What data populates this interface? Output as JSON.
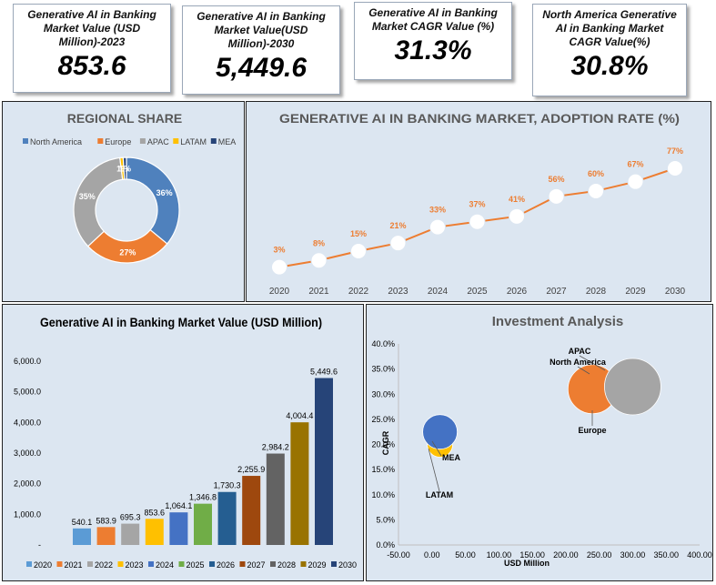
{
  "kpis": [
    {
      "label": "Generative AI in Banking Market Value (USD Million)-2023",
      "value": "853.6"
    },
    {
      "label": "Generative AI in Banking Market Value(USD Million)-2030",
      "value": "5,449.6"
    },
    {
      "label": "Generative AI in Banking Market CAGR  Value (%)",
      "value": "31.3%"
    },
    {
      "label": "North America Generative AI in Banking Market CAGR Value(%)",
      "value": "30.8%"
    }
  ],
  "chart_data": [
    {
      "type": "pie",
      "title": "REGIONAL SHARE",
      "categories": [
        "North America",
        "Europe",
        "APAC",
        "LATAM",
        "MEA"
      ],
      "values": [
        36,
        27,
        35,
        1,
        1
      ],
      "data_labels": [
        "36%",
        "27%",
        "35%",
        "1%",
        "1%"
      ],
      "colors": [
        "#4f81bd",
        "#ed7d31",
        "#a5a5a5",
        "#ffc000",
        "#264478"
      ],
      "legend_position": "top"
    },
    {
      "type": "line",
      "title": "GENERATIVE AI IN BANKING MARKET, ADOPTION RATE (%)",
      "x": [
        "2020",
        "2021",
        "2022",
        "2023",
        "2024",
        "2025",
        "2026",
        "2027",
        "2028",
        "2029",
        "2030"
      ],
      "values": [
        3,
        8,
        15,
        21,
        33,
        37,
        41,
        56,
        60,
        67,
        77
      ],
      "data_labels": [
        "3%",
        "8%",
        "15%",
        "21%",
        "33%",
        "37%",
        "41%",
        "56%",
        "60%",
        "67%",
        "77%"
      ],
      "line_color": "#ed7d31"
    },
    {
      "type": "bar",
      "title": "Generative AI in Banking Market Value (USD Million)",
      "categories": [
        "2020",
        "2021",
        "2022",
        "2023",
        "2024",
        "2025",
        "2026",
        "2027",
        "2028",
        "2029",
        "2030"
      ],
      "values": [
        540.1,
        583.9,
        695.3,
        853.6,
        1064.1,
        1346.8,
        1730.3,
        2255.9,
        2984.2,
        4004.4,
        5449.6
      ],
      "data_labels": [
        "540.1",
        "583.9",
        "695.3",
        "853.6",
        "1,064.1",
        "1,346.8",
        "1,730.3",
        "2,255.9",
        "2,984.2",
        "4,004.4",
        "5,449.6"
      ],
      "colors": [
        "#5b9bd5",
        "#ed7d31",
        "#a5a5a5",
        "#ffc000",
        "#4472c4",
        "#70ad47",
        "#255e91",
        "#9e480e",
        "#636363",
        "#997300",
        "#264478"
      ],
      "yticks": [
        "6,000.0",
        "5,000.0",
        "4,000.0",
        "3,000.0",
        "2,000.0",
        "1,000.0",
        "-"
      ],
      "ylim": [
        0,
        6000
      ],
      "legend_position": "bottom"
    },
    {
      "type": "scatter",
      "title": "Investment Analysis",
      "xlabel": "USD Million",
      "ylabel": "CAGR",
      "xlim": [
        -50,
        400
      ],
      "ylim": [
        0,
        40
      ],
      "xticks": [
        "-50.00",
        "0.00",
        "50.00",
        "100.00",
        "150.00",
        "200.00",
        "250.00",
        "300.00",
        "350.00",
        "400.00"
      ],
      "yticks": [
        "40.0%",
        "35.0%",
        "30.0%",
        "25.0%",
        "20.0%",
        "15.0%",
        "10.0%",
        "5.0%",
        "0.0%"
      ],
      "series": [
        {
          "name": "North America",
          "x": 240,
          "y": 31,
          "color": "#4472c4",
          "label": "North America"
        },
        {
          "name": "Europe",
          "x": 240,
          "y": 31,
          "color": "#ed7d31",
          "label": "Europe"
        },
        {
          "name": "APAC",
          "x": 300,
          "y": 31.5,
          "color": "#a5a5a5",
          "label": "APAC"
        },
        {
          "name": "LATAM",
          "x": 12,
          "y": 20,
          "color": "#ffc000",
          "label": "LATAM"
        },
        {
          "name": "MEA",
          "x": 12,
          "y": 22.5,
          "color": "#4472c4",
          "label": "MEA"
        }
      ]
    }
  ]
}
